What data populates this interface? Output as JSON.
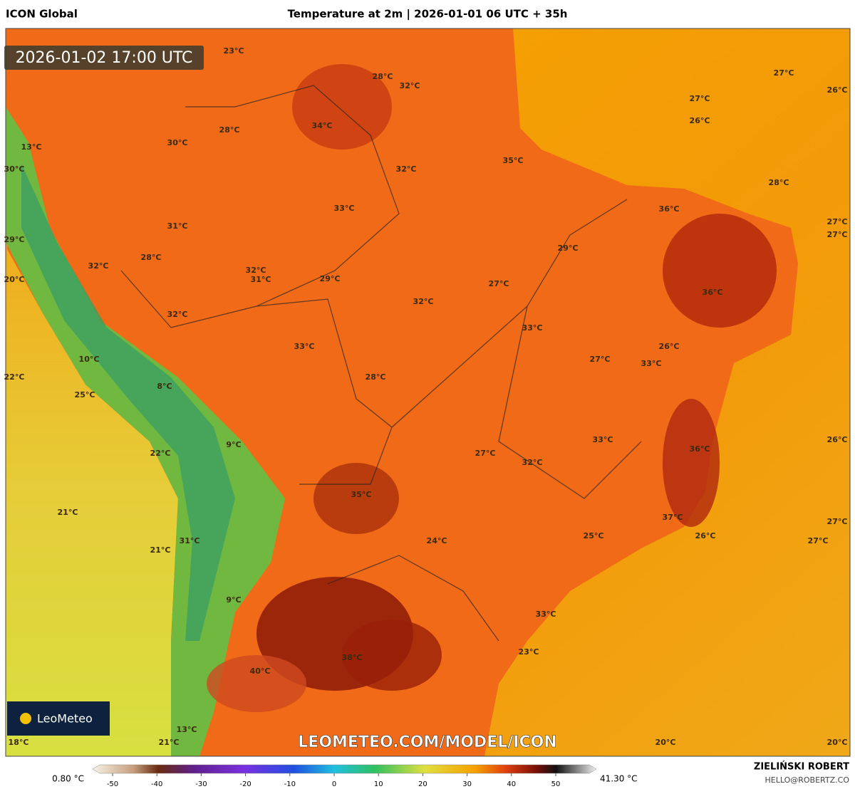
{
  "header": {
    "model": "ICON Global",
    "title": "Temperature at 2m | 2026-01-01 06 UTC + 35h",
    "timestamp": "2026-01-02 17:00 UTC"
  },
  "map": {
    "temperature_labels": [
      "23°C",
      "28°C",
      "32°C",
      "27°C",
      "26°C",
      "27°C",
      "26°C",
      "34°C",
      "28°C",
      "30°C",
      "13°C",
      "32°C",
      "35°C",
      "30°C",
      "28°C",
      "33°C",
      "36°C",
      "27°C",
      "27°C",
      "31°C",
      "29°C",
      "29°C",
      "28°C",
      "32°C",
      "32°C",
      "31°C",
      "29°C",
      "20°C",
      "27°C",
      "36°C",
      "32°C",
      "32°C",
      "33°C",
      "26°C",
      "33°C",
      "27°C",
      "33°C",
      "10°C",
      "22°C",
      "28°C",
      "8°C",
      "25°C",
      "26°C",
      "33°C",
      "36°C",
      "9°C",
      "22°C",
      "27°C",
      "32°C",
      "35°C",
      "21°C",
      "37°C",
      "27°C",
      "26°C",
      "25°C",
      "24°C",
      "31°C",
      "27°C",
      "21°C",
      "9°C",
      "33°C",
      "23°C",
      "38°C",
      "40°C",
      "13°C",
      "21°C",
      "18°C",
      "20°C",
      "20°C"
    ],
    "logo": "LeoMeteo",
    "watermark": "LEOMETEO.COM/MODEL/ICON"
  },
  "colorbar": {
    "min_label": "0.80 °C",
    "max_label": "41.30 °C",
    "ticks": [
      -50,
      -40,
      -30,
      -20,
      -10,
      0,
      10,
      20,
      30,
      40,
      50
    ]
  },
  "footer": {
    "author": "ZIELIŃSKI ROBERT",
    "email": "HELLO@ROBERTZ.CO"
  }
}
